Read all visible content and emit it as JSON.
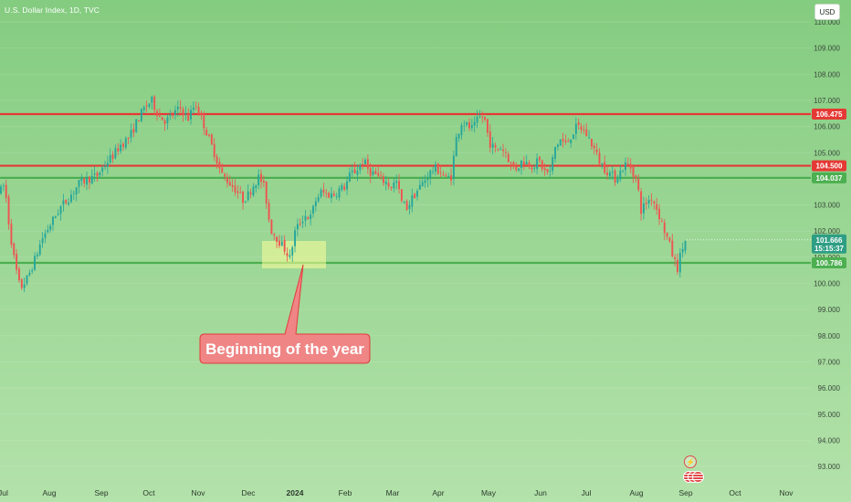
{
  "header": {
    "title": "U.S. Dollar Index, 1D, TVC"
  },
  "currency_button": "USD",
  "annotation": {
    "text": "Beginning of the year"
  },
  "icons": [
    "bolt-icon",
    "flag-icon"
  ],
  "colors": {
    "up": "#26a69a",
    "down": "#ef5350",
    "support": "#4caf50",
    "resistance": "#e53935",
    "annotation": "#ef7f7f",
    "highlight": "#ffff99"
  },
  "chart_data": {
    "type": "candlestick",
    "title": "U.S. Dollar Index, 1D, TVC",
    "ylim": [
      92.6,
      110.5
    ],
    "y_ticks": [
      "110.000",
      "109.000",
      "108.000",
      "107.000",
      "106.000",
      "105.000",
      "104.000",
      "103.000",
      "102.000",
      "101.000",
      "100.000",
      "99.000",
      "98.000",
      "97.000",
      "96.000",
      "95.000",
      "94.000",
      "93.000"
    ],
    "x_ticks": [
      "Jul",
      "Aug",
      "Sep",
      "Oct",
      "Nov",
      "Dec",
      "2024",
      "Feb",
      "Mar",
      "Apr",
      "May",
      "Jun",
      "Jul",
      "Aug",
      "Sep",
      "Oct",
      "Nov"
    ],
    "horizontal_lines": [
      {
        "label": "106.475",
        "value": 106.475,
        "kind": "resistance"
      },
      {
        "label": "104.500",
        "value": 104.5,
        "kind": "resistance"
      },
      {
        "label": "104.037",
        "value": 104.037,
        "kind": "support"
      },
      {
        "label": "100.786",
        "value": 100.786,
        "kind": "support"
      }
    ],
    "last_price": {
      "value": 101.666,
      "label": "101.666",
      "countdown": "15:15:37"
    },
    "path": [
      [
        0,
        103.5
      ],
      [
        5,
        103.8
      ],
      [
        10,
        102.2
      ],
      [
        16,
        100.8
      ],
      [
        22,
        99.8
      ],
      [
        30,
        100.2
      ],
      [
        38,
        100.9
      ],
      [
        46,
        101.7
      ],
      [
        56,
        102.3
      ],
      [
        66,
        102.9
      ],
      [
        76,
        103.3
      ],
      [
        86,
        103.8
      ],
      [
        96,
        104.0
      ],
      [
        106,
        104.1
      ],
      [
        116,
        104.6
      ],
      [
        124,
        104.9
      ],
      [
        132,
        105.3
      ],
      [
        142,
        105.6
      ],
      [
        150,
        106.2
      ],
      [
        158,
        106.7
      ],
      [
        166,
        107.0
      ],
      [
        174,
        106.4
      ],
      [
        182,
        106.2
      ],
      [
        190,
        106.5
      ],
      [
        198,
        106.7
      ],
      [
        206,
        106.3
      ],
      [
        214,
        106.9
      ],
      [
        222,
        106.2
      ],
      [
        230,
        105.4
      ],
      [
        236,
        104.9
      ],
      [
        242,
        104.2
      ],
      [
        250,
        103.9
      ],
      [
        258,
        103.6
      ],
      [
        266,
        103.2
      ],
      [
        272,
        103.4
      ],
      [
        278,
        103.8
      ],
      [
        284,
        104.1
      ],
      [
        290,
        103.6
      ],
      [
        296,
        102.1
      ],
      [
        302,
        101.8
      ],
      [
        308,
        101.5
      ],
      [
        314,
        101.2
      ],
      [
        318,
        100.9
      ],
      [
        322,
        101.9
      ],
      [
        328,
        102.3
      ],
      [
        334,
        102.6
      ],
      [
        340,
        102.5
      ],
      [
        346,
        103.2
      ],
      [
        352,
        103.5
      ],
      [
        358,
        103.4
      ],
      [
        366,
        103.4
      ],
      [
        372,
        103.6
      ],
      [
        378,
        103.7
      ],
      [
        384,
        104.2
      ],
      [
        390,
        104.3
      ],
      [
        398,
        104.7
      ],
      [
        404,
        104.3
      ],
      [
        410,
        104.2
      ],
      [
        416,
        104.0
      ],
      [
        422,
        103.9
      ],
      [
        428,
        103.7
      ],
      [
        434,
        103.9
      ],
      [
        440,
        103.1
      ],
      [
        446,
        102.9
      ],
      [
        452,
        103.3
      ],
      [
        458,
        103.6
      ],
      [
        464,
        103.9
      ],
      [
        470,
        104.2
      ],
      [
        476,
        104.4
      ],
      [
        482,
        104.3
      ],
      [
        488,
        104.0
      ],
      [
        494,
        104.1
      ],
      [
        500,
        105.6
      ],
      [
        506,
        106.2
      ],
      [
        512,
        106.0
      ],
      [
        518,
        105.9
      ],
      [
        524,
        106.3
      ],
      [
        530,
        106.4
      ],
      [
        536,
        105.4
      ],
      [
        542,
        105.1
      ],
      [
        548,
        105.2
      ],
      [
        554,
        105.0
      ],
      [
        560,
        104.5
      ],
      [
        566,
        104.4
      ],
      [
        572,
        104.7
      ],
      [
        578,
        104.6
      ],
      [
        584,
        104.5
      ],
      [
        590,
        104.7
      ],
      [
        596,
        104.3
      ],
      [
        602,
        104.2
      ],
      [
        608,
        105.2
      ],
      [
        614,
        105.5
      ],
      [
        620,
        105.3
      ],
      [
        626,
        105.7
      ],
      [
        632,
        106.0
      ],
      [
        638,
        105.9
      ],
      [
        644,
        105.6
      ],
      [
        650,
        105.2
      ],
      [
        656,
        104.7
      ],
      [
        662,
        104.4
      ],
      [
        668,
        104.2
      ],
      [
        674,
        104.0
      ],
      [
        680,
        104.3
      ],
      [
        686,
        104.6
      ],
      [
        692,
        104.4
      ],
      [
        698,
        103.8
      ],
      [
        702,
        102.8
      ],
      [
        708,
        103.1
      ],
      [
        714,
        103.3
      ],
      [
        720,
        102.8
      ],
      [
        726,
        102.2
      ],
      [
        730,
        101.8
      ],
      [
        734,
        101.4
      ],
      [
        738,
        100.9
      ],
      [
        742,
        100.6
      ],
      [
        746,
        101.2
      ],
      [
        750,
        101.6
      ],
      [
        752,
        101.666
      ]
    ]
  }
}
